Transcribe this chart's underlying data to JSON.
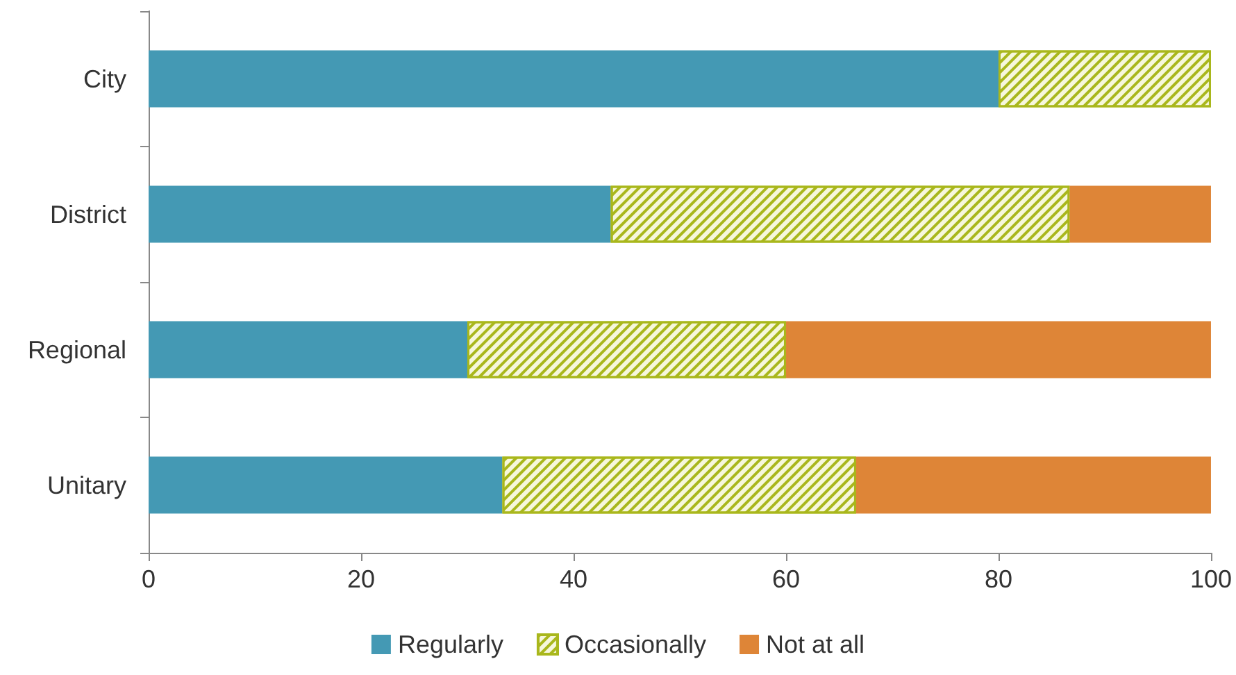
{
  "chart_data": {
    "type": "bar",
    "orientation": "horizontal",
    "stacked": true,
    "categories": [
      "City",
      "District",
      "Regional",
      "Unitary"
    ],
    "series": [
      {
        "name": "Regularly",
        "color": "#4499b4",
        "values": [
          80,
          43.5,
          30,
          33.3
        ]
      },
      {
        "name": "Occasionally",
        "color": "#a9b71c",
        "values": [
          20,
          43.2,
          30,
          33.3
        ]
      },
      {
        "name": "Not at all",
        "color": "#de8537",
        "values": [
          0,
          13.3,
          40,
          33.4
        ]
      }
    ],
    "xlim": [
      0,
      100
    ],
    "xticks": [
      0,
      20,
      40,
      60,
      80,
      100
    ],
    "legend": "bottom"
  }
}
